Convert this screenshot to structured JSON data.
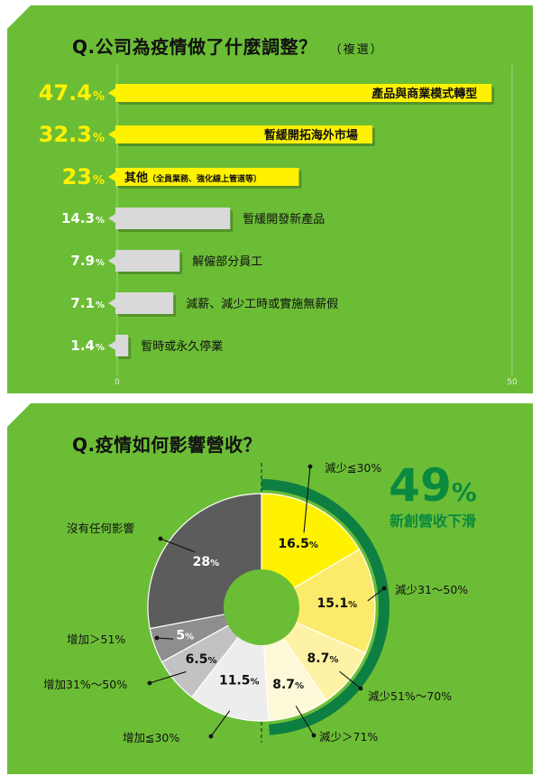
{
  "panel_top": {
    "title": "Q.公司為疫情做了什麼調整？",
    "subtitle": "（複選）"
  },
  "panel_bottom": {
    "title": "Q.疫情如何影響營收？",
    "highlight_value": "49",
    "highlight_unit": "%",
    "highlight_label": "新創營收下滑"
  },
  "colors": {
    "background": "#6cbd36",
    "highlight_bar": "#fff200",
    "grey_bar": "#d9d9d9",
    "dark_green": "#0a8a3e",
    "ring": "#0e7f43"
  },
  "chart_data": [
    {
      "type": "bar",
      "orientation": "horizontal",
      "title": "Q.公司為疫情做了什麼調整？（複選）",
      "categories": [
        "產品與商業模式轉型",
        "暫緩開拓海外市場",
        "其他",
        "暫緩開發新產品",
        "解僱部分員工",
        "減薪、減少工時或實施無薪假",
        "暫時或永久停業"
      ],
      "category_notes": [
        "",
        "",
        "（全員業務、強化線上管道等）",
        "",
        "",
        "",
        ""
      ],
      "values": [
        47.4,
        32.3,
        23,
        14.3,
        7.9,
        7.1,
        1.4
      ],
      "value_labels": [
        "47.4",
        "32.3",
        "23",
        "14.3",
        "7.9",
        "7.1",
        "1.4"
      ],
      "unit": "%",
      "highlighted": [
        true,
        true,
        true,
        false,
        false,
        false,
        false
      ],
      "xlim": [
        0,
        50
      ],
      "x_ticks": [
        "0",
        "50"
      ],
      "grid": true
    },
    {
      "type": "pie",
      "style": "donut",
      "title": "Q.疫情如何影響營收？",
      "labels": [
        "減少≦30%",
        "減少31～50%",
        "減少51%～70%",
        "減少＞71%",
        "增加≦30%",
        "增加31%～50%",
        "增加＞51%",
        "沒有任何影響"
      ],
      "values": [
        16.5,
        15.1,
        8.7,
        8.7,
        11.5,
        6.5,
        5,
        28
      ],
      "value_labels": [
        "16.5",
        "15.1",
        "8.7",
        "8.7",
        "11.5",
        "6.5",
        "5",
        "28"
      ],
      "unit": "%",
      "colors": [
        "#fff200",
        "#fcea6a",
        "#fdf2a6",
        "#fdf8d8",
        "#ededed",
        "#c2c2c2",
        "#8e8e8e",
        "#5c5c5c"
      ],
      "value_text_colors": [
        "#111111",
        "#111111",
        "#111111",
        "#111111",
        "#111111",
        "#111111",
        "#ffffff",
        "#ffffff"
      ],
      "group_total": "49%",
      "group_label": "新創營收下滑"
    }
  ]
}
